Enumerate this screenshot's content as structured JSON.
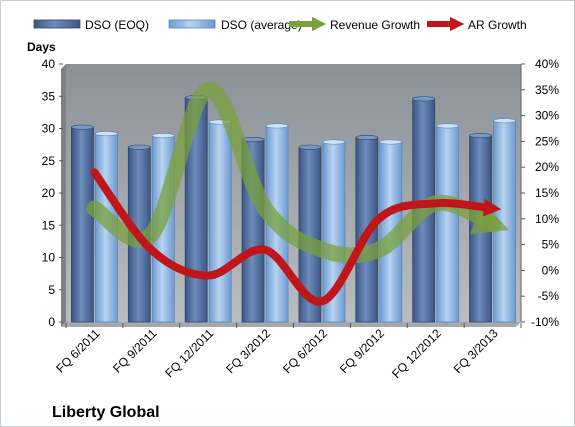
{
  "chart_data": {
    "type": "bar",
    "title": "Liberty Global",
    "ylabel": "Days",
    "ylim": [
      0,
      40
    ],
    "y2lim": [
      -0.1,
      0.4
    ],
    "y_ticks": [
      "0",
      "5",
      "10",
      "15",
      "20",
      "25",
      "30",
      "35",
      "40"
    ],
    "y2_ticks": [
      "-10%",
      "-5%",
      "0%",
      "5%",
      "10%",
      "15%",
      "20%",
      "25%",
      "30%",
      "35%",
      "40%"
    ],
    "categories": [
      "FQ 6/2011",
      "FQ 9/2011",
      "FQ 12/2011",
      "FQ 3/2012",
      "FQ 6/2012",
      "FQ 9/2012",
      "FQ 12/2012",
      "FQ 3/2013"
    ],
    "series": [
      {
        "name": "DSO (EOQ)",
        "kind": "bar",
        "axis": "left",
        "color": "#4f6fa0",
        "values": [
          30.2,
          27.1,
          34.8,
          28.3,
          27.1,
          28.6,
          34.6,
          28.9
        ]
      },
      {
        "name": "DSO (average)",
        "kind": "bar",
        "axis": "left",
        "color": "#8fb4dd",
        "values": [
          29.2,
          28.9,
          31.0,
          30.4,
          27.9,
          27.9,
          30.4,
          31.2
        ]
      },
      {
        "name": "Revenue Growth",
        "kind": "line",
        "axis": "right",
        "color": "#7aa03c",
        "values": [
          0.12,
          0.07,
          0.35,
          0.12,
          0.04,
          0.04,
          0.13,
          0.09
        ]
      },
      {
        "name": "AR Growth",
        "kind": "line",
        "axis": "right",
        "color": "#c0161a",
        "values": [
          0.19,
          0.04,
          -0.01,
          0.04,
          -0.06,
          0.1,
          0.13,
          0.12
        ]
      }
    ],
    "legend": "top",
    "grid": false
  }
}
